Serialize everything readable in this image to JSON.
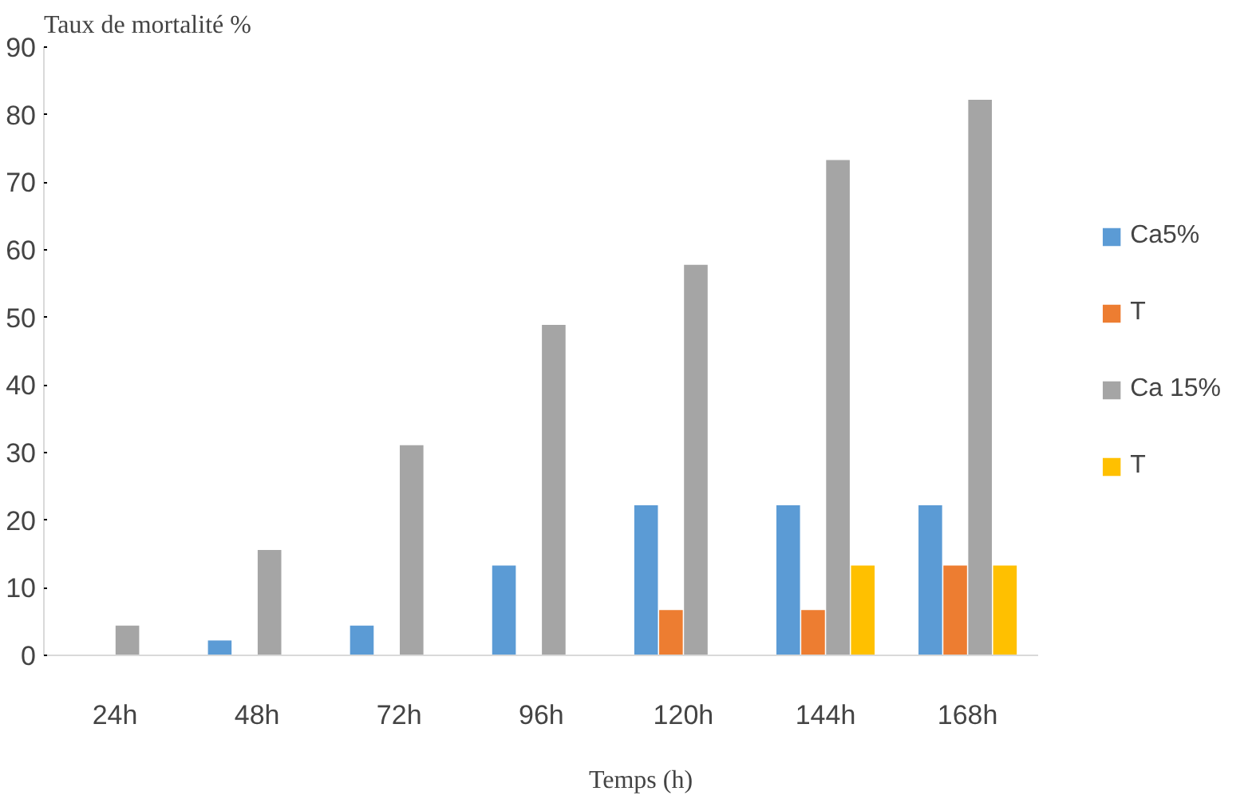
{
  "chart_data": {
    "type": "bar",
    "xlabel": "Temps (h)",
    "ylabel": "Taux de mortalité %",
    "categories": [
      "24h",
      "48h",
      "72h",
      "96h",
      "120h",
      "144h",
      "168h"
    ],
    "series": [
      {
        "name": "Ca5%",
        "color": "#5b9bd5",
        "values": [
          0,
          2.2,
          4.4,
          13.3,
          22.2,
          22.2,
          22.2
        ]
      },
      {
        "name": "T",
        "color": "#ed7d31",
        "values": [
          0,
          0,
          0,
          0,
          6.7,
          6.7,
          13.3
        ]
      },
      {
        "name": "Ca 15%",
        "color": "#a5a5a5",
        "values": [
          4.4,
          15.6,
          31.1,
          48.9,
          57.8,
          73.3,
          82.2
        ]
      },
      {
        "name": "T",
        "color": "#ffc000",
        "values": [
          0,
          0,
          0,
          0,
          0,
          13.3,
          13.3
        ]
      }
    ],
    "ylim": [
      0,
      90
    ],
    "yticks": [
      0,
      10,
      20,
      30,
      40,
      50,
      60,
      70,
      80,
      90
    ],
    "grid": false,
    "legend": "right"
  }
}
